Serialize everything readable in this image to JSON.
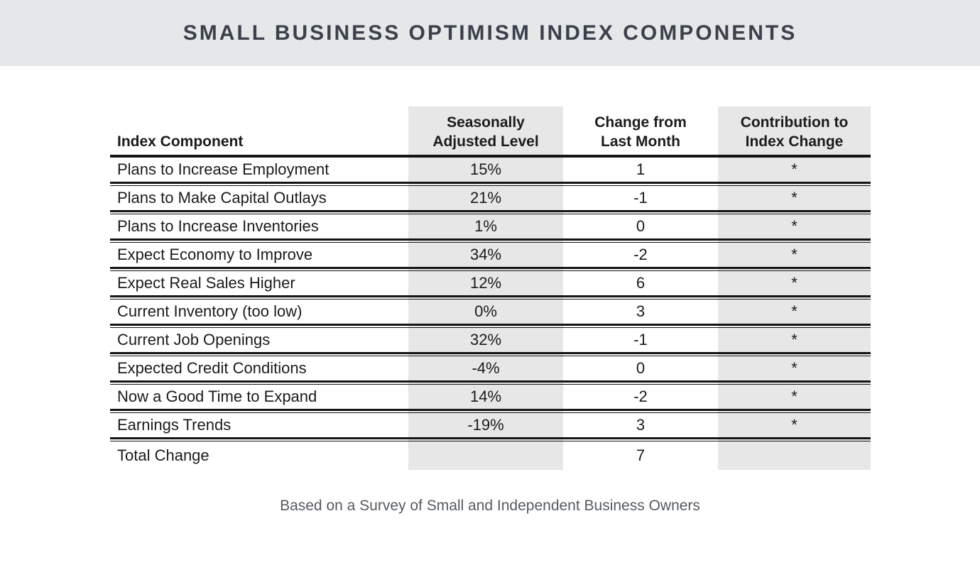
{
  "title": "SMALL BUSINESS OPTIMISM INDEX COMPONENTS",
  "footer_note": "Based on a Survey of Small and Independent Business Owners",
  "colors": {
    "band": "#e6e7e8",
    "shade": "#e7e7e7",
    "rule_color": "#141414",
    "text": "#1b1b1b",
    "title_text": "#3a414c",
    "footer_text": "#565a60"
  },
  "chart_data": {
    "type": "table",
    "title": "SMALL BUSINESS OPTIMISM INDEX COMPONENTS",
    "note": "Based on a Survey of Small and Independent Business Owners",
    "columns": [
      "Index Component",
      "Seasonally Adjusted Level",
      "Change from Last Month",
      "Contribution to Index Change"
    ],
    "shaded_columns": [
      "Seasonally Adjusted Level",
      "Contribution to Index Change"
    ],
    "rows": [
      {
        "component": "Plans to Increase Employment",
        "seasonally_adjusted_level": "15%",
        "change_from_last_month": "1",
        "contribution_to_index_change": "*"
      },
      {
        "component": "Plans to Make Capital Outlays",
        "seasonally_adjusted_level": "21%",
        "change_from_last_month": "-1",
        "contribution_to_index_change": "*"
      },
      {
        "component": "Plans to Increase Inventories",
        "seasonally_adjusted_level": "1%",
        "change_from_last_month": "0",
        "contribution_to_index_change": "*"
      },
      {
        "component": "Expect Economy to Improve",
        "seasonally_adjusted_level": "34%",
        "change_from_last_month": "-2",
        "contribution_to_index_change": "*"
      },
      {
        "component": "Expect Real Sales Higher",
        "seasonally_adjusted_level": "12%",
        "change_from_last_month": "6",
        "contribution_to_index_change": "*"
      },
      {
        "component": "Current Inventory (too low)",
        "seasonally_adjusted_level": "0%",
        "change_from_last_month": "3",
        "contribution_to_index_change": "*"
      },
      {
        "component": "Current Job Openings",
        "seasonally_adjusted_level": "32%",
        "change_from_last_month": "-1",
        "contribution_to_index_change": "*"
      },
      {
        "component": "Expected Credit Conditions",
        "seasonally_adjusted_level": "-4%",
        "change_from_last_month": "0",
        "contribution_to_index_change": "*"
      },
      {
        "component": "Now a Good Time to Expand",
        "seasonally_adjusted_level": "14%",
        "change_from_last_month": "-2",
        "contribution_to_index_change": "*"
      },
      {
        "component": "Earnings Trends",
        "seasonally_adjusted_level": "-19%",
        "change_from_last_month": "3",
        "contribution_to_index_change": "*"
      }
    ],
    "total_row": {
      "component": "Total Change",
      "seasonally_adjusted_level": "",
      "change_from_last_month": "7",
      "contribution_to_index_change": ""
    }
  }
}
